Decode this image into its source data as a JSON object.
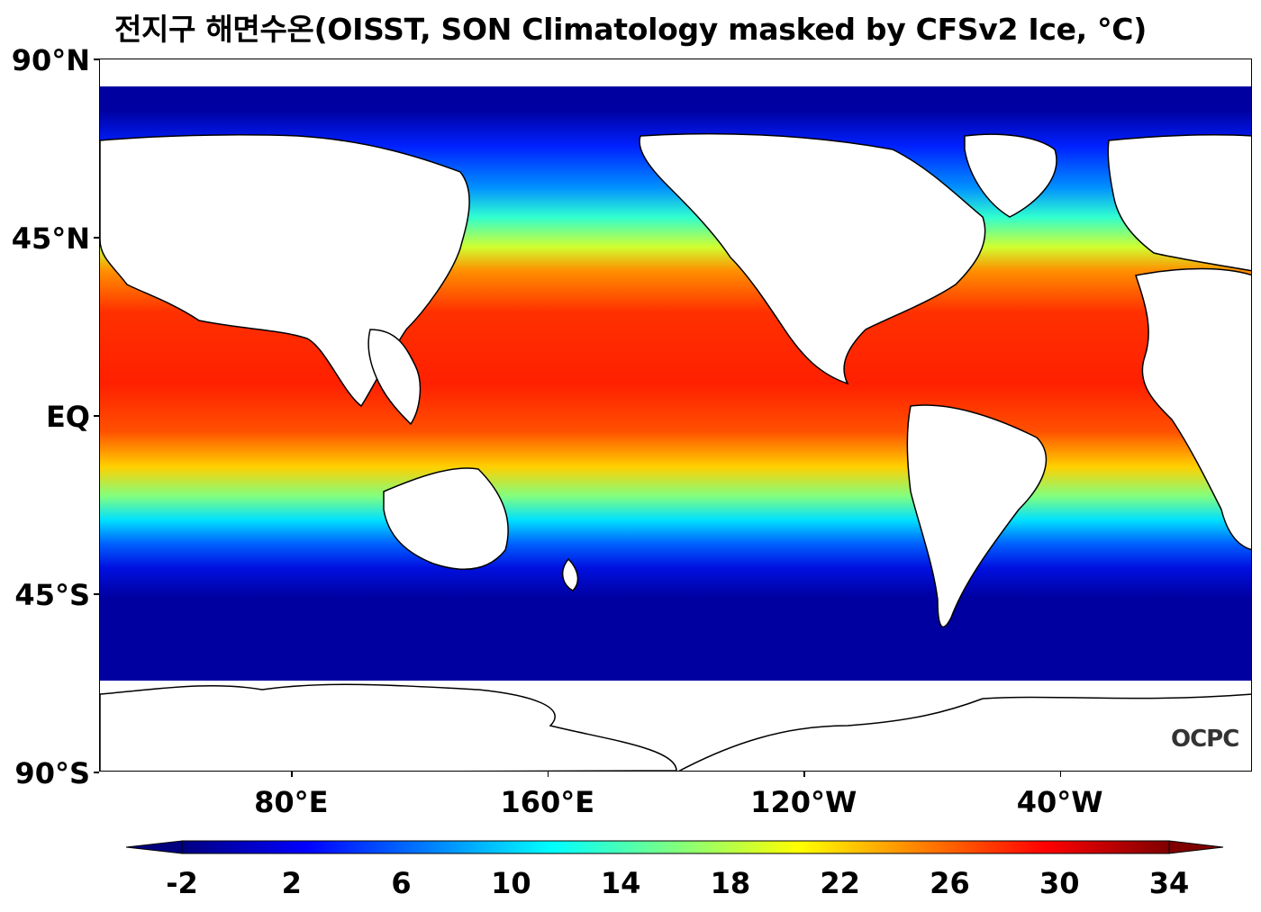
{
  "title": "전지구 해면수온(OISST, SON Climatology masked by CFSv2 Ice, °C)",
  "watermark": "OCPC",
  "map": {
    "projection": "equirectangular",
    "central_longitude": 200,
    "lon_range": [
      20,
      380
    ],
    "lat_range": [
      -90,
      90
    ],
    "lat_ticks": [
      {
        "lat": 90,
        "label": "90°N"
      },
      {
        "lat": 45,
        "label": "45°N"
      },
      {
        "lat": 0,
        "label": "EQ"
      },
      {
        "lat": -45,
        "label": "45°S"
      },
      {
        "lat": -90,
        "label": "90°S"
      }
    ],
    "lon_ticks": [
      {
        "lon": 80,
        "label": "80°E"
      },
      {
        "lon": 160,
        "label": "160°E"
      },
      {
        "lon": 240,
        "label": "120°W"
      },
      {
        "lon": 320,
        "label": "40°W"
      }
    ],
    "field": "sea surface temperature",
    "land_color": "#ffffff",
    "coastline_color": "#000000"
  },
  "colorbar": {
    "orientation": "horizontal",
    "min": -2,
    "max": 34,
    "extend": "both",
    "colormap": "jet",
    "ticks": [
      "-2",
      "2",
      "6",
      "10",
      "14",
      "18",
      "22",
      "26",
      "30",
      "34"
    ],
    "colors": [
      "#00007f",
      "#0000ff",
      "#007fff",
      "#00ffff",
      "#7fff7f",
      "#ffff00",
      "#ff7f00",
      "#ff0000",
      "#7f0000"
    ]
  }
}
